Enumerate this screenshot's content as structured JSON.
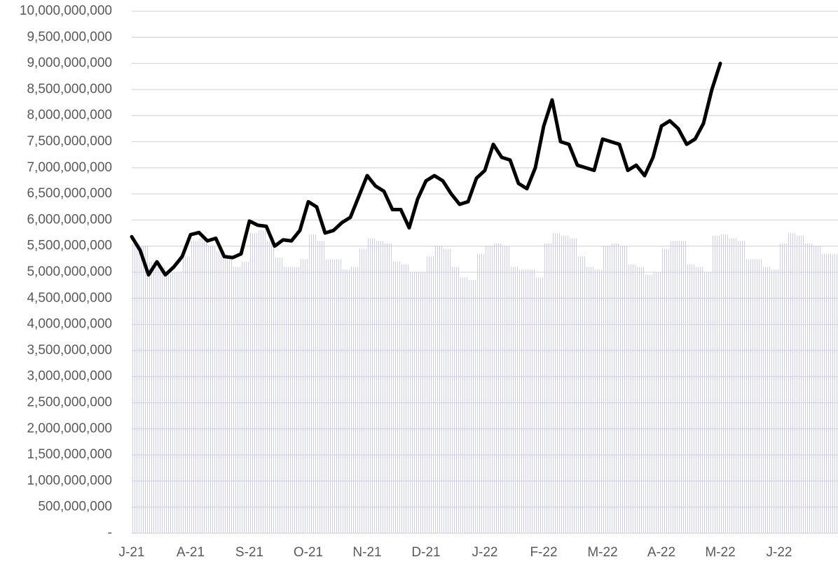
{
  "chart_data": {
    "type": "combo",
    "categories": [
      "J-21",
      null,
      null,
      null,
      null,
      null,
      null,
      "A-21",
      null,
      null,
      null,
      null,
      null,
      null,
      "S-21",
      null,
      null,
      null,
      null,
      null,
      null,
      "O-21",
      null,
      null,
      null,
      null,
      null,
      null,
      "N-21",
      null,
      null,
      null,
      null,
      null,
      null,
      "D-21",
      null,
      null,
      null,
      null,
      null,
      null,
      "J-22",
      null,
      null,
      null,
      null,
      null,
      null,
      "F-22",
      null,
      null,
      null,
      null,
      null,
      null,
      "M-22",
      null,
      null,
      null,
      null,
      null,
      null,
      "A-22",
      null,
      null,
      null,
      null,
      null,
      null,
      "M-22",
      null,
      null,
      null,
      null,
      null,
      null,
      "J-22",
      null,
      null,
      null,
      null,
      null,
      null
    ],
    "series": [
      {
        "type": "bar",
        "color": "#c9cbf3",
        "values": [
          5550000000,
          5500000000,
          5200000000,
          5100000000,
          5000000000,
          5000000000,
          5300000000,
          5600000000,
          5650000000,
          5500000000,
          5400000000,
          5300000000,
          5100000000,
          5200000000,
          5750000000,
          5800000000,
          5600000000,
          5280000000,
          5100000000,
          5100000000,
          5250000000,
          5720000000,
          5600000000,
          5250000000,
          5250000000,
          5050000000,
          5100000000,
          5450000000,
          5650000000,
          5600000000,
          5550000000,
          5200000000,
          5150000000,
          5000000000,
          5000000000,
          5300000000,
          5500000000,
          5450000000,
          5100000000,
          4900000000,
          4850000000,
          5350000000,
          5500000000,
          5550000000,
          5500000000,
          5100000000,
          5050000000,
          5050000000,
          4900000000,
          5550000000,
          5750000000,
          5700000000,
          5650000000,
          5300000000,
          5100000000,
          5050000000,
          5500000000,
          5550000000,
          5500000000,
          5150000000,
          5100000000,
          4950000000,
          5000000000,
          5450000000,
          5600000000,
          5600000000,
          5150000000,
          5100000000,
          5000000000,
          5700000000,
          5720000000,
          5650000000,
          5600000000,
          5250000000,
          5250000000,
          5100000000,
          5050000000,
          5550000000,
          5750000000,
          5700000000,
          5550000000,
          5500000000,
          5350000000,
          5350000000
        ]
      },
      {
        "type": "line",
        "color": "#000000",
        "values": [
          5680000000,
          5420000000,
          4950000000,
          5200000000,
          4950000000,
          5100000000,
          5300000000,
          5720000000,
          5760000000,
          5600000000,
          5650000000,
          5300000000,
          5280000000,
          5350000000,
          5980000000,
          5900000000,
          5880000000,
          5500000000,
          5620000000,
          5600000000,
          5800000000,
          6350000000,
          6250000000,
          5750000000,
          5800000000,
          5950000000,
          6050000000,
          6450000000,
          6850000000,
          6650000000,
          6550000000,
          6200000000,
          6200000000,
          5850000000,
          6400000000,
          6750000000,
          6850000000,
          6750000000,
          6500000000,
          6300000000,
          6350000000,
          6800000000,
          6950000000,
          7450000000,
          7200000000,
          7150000000,
          6700000000,
          6600000000,
          7000000000,
          7800000000,
          8300000000,
          7500000000,
          7450000000,
          7050000000,
          7000000000,
          6950000000,
          7550000000,
          7500000000,
          7450000000,
          6950000000,
          7050000000,
          6850000000,
          7200000000,
          7800000000,
          7900000000,
          7750000000,
          7450000000,
          7550000000,
          7850000000,
          8500000000,
          9000000000,
          null,
          null,
          null,
          null,
          null,
          null,
          null,
          null,
          null,
          null,
          null,
          null,
          null
        ]
      }
    ],
    "ylim": [
      0,
      10000000000
    ],
    "yticks": [
      {
        "value": 0,
        "label": "-"
      },
      {
        "value": 500000000,
        "label": "500,000,000"
      },
      {
        "value": 1000000000,
        "label": "1,000,000,000"
      },
      {
        "value": 1500000000,
        "label": "1,500,000,000"
      },
      {
        "value": 2000000000,
        "label": "2,000,000,000"
      },
      {
        "value": 2500000000,
        "label": "2,500,000,000"
      },
      {
        "value": 3000000000,
        "label": "3,000,000,000"
      },
      {
        "value": 3500000000,
        "label": "3,500,000,000"
      },
      {
        "value": 4000000000,
        "label": "4,000,000,000"
      },
      {
        "value": 4500000000,
        "label": "4,500,000,000"
      },
      {
        "value": 5000000000,
        "label": "5,000,000,000"
      },
      {
        "value": 5500000000,
        "label": "5,500,000,000"
      },
      {
        "value": 6000000000,
        "label": "6,000,000,000"
      },
      {
        "value": 6500000000,
        "label": "6,500,000,000"
      },
      {
        "value": 7000000000,
        "label": "7,000,000,000"
      },
      {
        "value": 7500000000,
        "label": "7,500,000,000"
      },
      {
        "value": 8000000000,
        "label": "8,000,000,000"
      },
      {
        "value": 8500000000,
        "label": "8,500,000,000"
      },
      {
        "value": 9000000000,
        "label": "9,000,000,000"
      },
      {
        "value": 9500000000,
        "label": "9,500,000,000"
      },
      {
        "value": 10000000000,
        "label": "10,000,000,000"
      }
    ],
    "grid": true
  }
}
